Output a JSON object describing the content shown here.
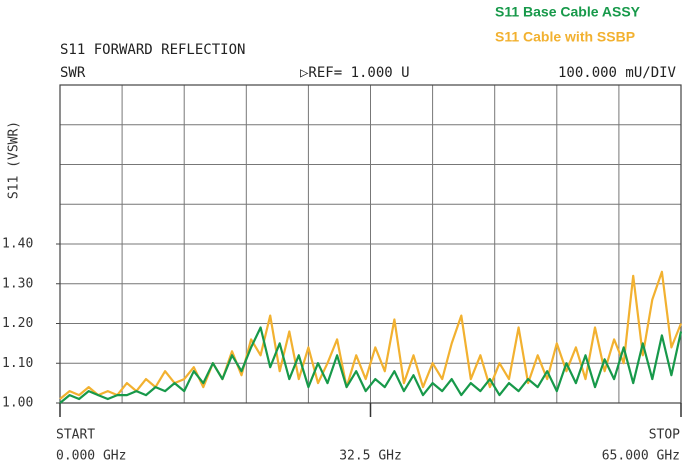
{
  "chart_data": {
    "type": "line",
    "title": "S11 FORWARD REFLECTION",
    "subtitle": "SWR",
    "reference": "▷REF= 1.000 U",
    "scale": "100.000 mU/DIV",
    "y_label": "S11 (VSWR)",
    "start_label": "START",
    "stop_label": "STOP",
    "x": [
      0,
      1,
      2,
      3,
      4,
      5,
      6,
      7,
      8,
      9,
      10,
      11,
      12,
      13,
      14,
      15,
      16,
      17,
      18,
      19,
      20,
      21,
      22,
      23,
      24,
      25,
      26,
      27,
      28,
      29,
      30,
      31,
      32,
      33,
      34,
      35,
      36,
      37,
      38,
      39,
      40,
      41,
      42,
      43,
      44,
      45,
      46,
      47,
      48,
      49,
      50,
      51,
      52,
      53,
      54,
      55,
      56,
      57,
      58,
      59,
      60,
      61,
      62,
      63,
      64,
      65
    ],
    "series": [
      {
        "name": "S11  Base Cable ASSY",
        "color": "#17994a",
        "values": [
          1.0,
          1.02,
          1.01,
          1.03,
          1.02,
          1.01,
          1.02,
          1.02,
          1.03,
          1.02,
          1.04,
          1.03,
          1.05,
          1.03,
          1.08,
          1.05,
          1.1,
          1.06,
          1.12,
          1.08,
          1.14,
          1.19,
          1.09,
          1.15,
          1.06,
          1.12,
          1.04,
          1.1,
          1.05,
          1.12,
          1.04,
          1.08,
          1.03,
          1.06,
          1.04,
          1.08,
          1.03,
          1.07,
          1.02,
          1.05,
          1.03,
          1.06,
          1.02,
          1.05,
          1.03,
          1.06,
          1.02,
          1.05,
          1.03,
          1.06,
          1.04,
          1.08,
          1.03,
          1.1,
          1.05,
          1.12,
          1.04,
          1.11,
          1.06,
          1.14,
          1.05,
          1.15,
          1.06,
          1.17,
          1.07,
          1.18
        ]
      },
      {
        "name": "S11  Cable with SSBP",
        "color": "#f2b130",
        "values": [
          1.01,
          1.03,
          1.02,
          1.04,
          1.02,
          1.03,
          1.02,
          1.05,
          1.03,
          1.06,
          1.04,
          1.08,
          1.05,
          1.06,
          1.09,
          1.04,
          1.1,
          1.06,
          1.13,
          1.07,
          1.16,
          1.12,
          1.22,
          1.08,
          1.18,
          1.06,
          1.14,
          1.05,
          1.1,
          1.16,
          1.04,
          1.12,
          1.06,
          1.14,
          1.08,
          1.21,
          1.05,
          1.12,
          1.04,
          1.1,
          1.06,
          1.15,
          1.22,
          1.06,
          1.12,
          1.04,
          1.1,
          1.06,
          1.19,
          1.05,
          1.12,
          1.06,
          1.15,
          1.08,
          1.14,
          1.06,
          1.19,
          1.08,
          1.16,
          1.1,
          1.32,
          1.12,
          1.26,
          1.33,
          1.14,
          1.2
        ]
      }
    ],
    "xlim": [
      0,
      65
    ],
    "xticks": [
      {
        "value": 0,
        "label": "0.000 GHz"
      },
      {
        "value": 32.5,
        "label": "32.5 GHz"
      },
      {
        "value": 65,
        "label": "65.000 GHz"
      }
    ],
    "ylim": [
      1.0,
      1.8
    ],
    "yticks": [
      {
        "value": 1.0,
        "label": "1.00"
      },
      {
        "value": 1.1,
        "label": "1.10"
      },
      {
        "value": 1.2,
        "label": "1.20"
      },
      {
        "value": 1.3,
        "label": "1.30"
      },
      {
        "value": 1.4,
        "label": "1.40"
      }
    ],
    "grid": {
      "x_divisions": 10,
      "y_divisions": 8
    }
  }
}
